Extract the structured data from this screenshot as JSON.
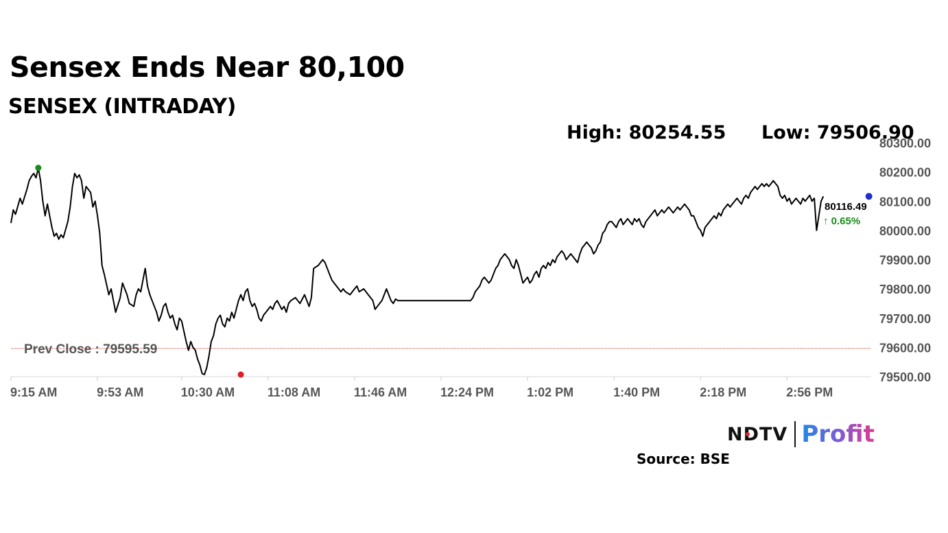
{
  "headline": "Sensex Ends Near 80,100",
  "subheadline": "SENSEX (INTRADAY)",
  "stats": {
    "high": "High: 80254.55",
    "low": "Low: 79506.90"
  },
  "source": "Source: BSE",
  "logo": {
    "brand": "NDTV",
    "product": "Profit"
  },
  "chart_data": {
    "type": "line",
    "title": "SENSEX (INTRADAY)",
    "xlabel": "",
    "ylabel": "",
    "x_tick_labels": [
      "9:15 AM",
      "9:53 AM",
      "10:30 AM",
      "11:08 AM",
      "11:46 AM",
      "12:24 PM",
      "1:02 PM",
      "1:40 PM",
      "2:18 PM",
      "2:56 PM"
    ],
    "x_tick_minutes": [
      555,
      593,
      630,
      668,
      706,
      744,
      782,
      820,
      858,
      896
    ],
    "x_range_minutes": [
      555,
      933
    ],
    "y_ticks": [
      79500,
      79600,
      79700,
      79800,
      79900,
      80000,
      80100,
      80200,
      80300
    ],
    "y_tick_labels": [
      "79500.00",
      "79600.00",
      "79700.00",
      "79800.00",
      "79900.00",
      "80000.00",
      "80100.00",
      "80200.00",
      "80300.00"
    ],
    "ylim": [
      79500,
      80300
    ],
    "grid": false,
    "reference_line": {
      "label": "Prev Close : 79595.59",
      "value": 79595.59,
      "color": "#c0392b"
    },
    "markers": {
      "high": {
        "minute": 567,
        "value": 80214,
        "color": "#1a8a1a"
      },
      "low": {
        "minute": 656,
        "value": 79507,
        "color": "#e31b23"
      },
      "last": {
        "minute": 932,
        "value": 80116.49,
        "color": "#1f2fcf"
      }
    },
    "last_value_label": "80116.49",
    "change_label": "↑ 0.65%",
    "change_color": "#1a8a1a",
    "line_color": "#000000",
    "series": [
      {
        "minutes": [
          555,
          556,
          557,
          559,
          560,
          562,
          563,
          564,
          565,
          566,
          567,
          568,
          569,
          570,
          571,
          573,
          574,
          575,
          576,
          577,
          578,
          580,
          581,
          582,
          583,
          584,
          585,
          586,
          587,
          588,
          590,
          591,
          592,
          593,
          594,
          595,
          596,
          598,
          599,
          600,
          601,
          603,
          604,
          605,
          606,
          607,
          609,
          610,
          611,
          612,
          613,
          614,
          615,
          616,
          617,
          618,
          619,
          620,
          621,
          622,
          623,
          624,
          625,
          626,
          627,
          628,
          629,
          630,
          632,
          633,
          634,
          635,
          636,
          637,
          638,
          639,
          640,
          641,
          642,
          643,
          644,
          645,
          646,
          647,
          648,
          649,
          650,
          651,
          652,
          653,
          654,
          655,
          656,
          657,
          658,
          659,
          660,
          661,
          662,
          663,
          664,
          665,
          666,
          667,
          669,
          670,
          671,
          672,
          674,
          675,
          676,
          677,
          678,
          680,
          681,
          682,
          684,
          685,
          686,
          687,
          688,
          690,
          692,
          693,
          694,
          695,
          696,
          697,
          698,
          699,
          700,
          701,
          702,
          704,
          705,
          706,
          707,
          708,
          710,
          711,
          712,
          713,
          714,
          715,
          716,
          717,
          718,
          719,
          720,
          721,
          722,
          723,
          724,
          725,
          727,
          728,
          729,
          730,
          731,
          732,
          733,
          734,
          735,
          736,
          737,
          738,
          739,
          740,
          741,
          742,
          743,
          744,
          745,
          746,
          747,
          748,
          749,
          750,
          751,
          752,
          753,
          754,
          755,
          756,
          757,
          758,
          759,
          760,
          761,
          762,
          763,
          764,
          765,
          766,
          767,
          768,
          769,
          770,
          771,
          772,
          773,
          774,
          775,
          776,
          777,
          778,
          779,
          780,
          781,
          782,
          783,
          784,
          785,
          786,
          787,
          788,
          789,
          790,
          791,
          792,
          793,
          794,
          795,
          796,
          797,
          798,
          799,
          800,
          801,
          802,
          803,
          804,
          805,
          806,
          807,
          808,
          809,
          810,
          811,
          812,
          813,
          814,
          815,
          816,
          817,
          818,
          819,
          820,
          821,
          822,
          823,
          824,
          825,
          826,
          827,
          828,
          829,
          830,
          831,
          832,
          833,
          834,
          835,
          836,
          837,
          838,
          839,
          840,
          841,
          842,
          843,
          844,
          845,
          846,
          847,
          848,
          849,
          850,
          851,
          852,
          853,
          854,
          855,
          856,
          857,
          858,
          859,
          860,
          861,
          862,
          863,
          864,
          865,
          866,
          867,
          868,
          869,
          870,
          871,
          872,
          873,
          874,
          875,
          876,
          877,
          878,
          879,
          880,
          881,
          882,
          883,
          884,
          885,
          886,
          887,
          888,
          889,
          890,
          891,
          892,
          893,
          894,
          895,
          896,
          897,
          898,
          899,
          900,
          901,
          902,
          903,
          904,
          905,
          906,
          907,
          908,
          909,
          910,
          911,
          912,
          913,
          914,
          915,
          916,
          917,
          918,
          919,
          920,
          921,
          922,
          923,
          924,
          925,
          926,
          927,
          928,
          929,
          930,
          931,
          932
        ],
        "values": [
          80025,
          80070,
          80055,
          80110,
          80090,
          80140,
          80170,
          80185,
          80195,
          80180,
          80214,
          80170,
          80100,
          80050,
          80090,
          80010,
          79980,
          79990,
          79970,
          79985,
          79975,
          80030,
          80080,
          80150,
          80195,
          80180,
          80190,
          80170,
          80110,
          80150,
          80130,
          80080,
          80100,
          80050,
          79990,
          79880,
          79850,
          79780,
          79800,
          79760,
          79720,
          79770,
          79820,
          79800,
          79780,
          79750,
          79740,
          79780,
          79800,
          79790,
          79830,
          79870,
          79810,
          79780,
          79760,
          79740,
          79720,
          79690,
          79710,
          79740,
          79750,
          79720,
          79700,
          79710,
          79680,
          79660,
          79700,
          79690,
          79620,
          79590,
          79620,
          79600,
          79590,
          79560,
          79540,
          79510,
          79507,
          79530,
          79570,
          79620,
          79640,
          79680,
          79700,
          79710,
          79680,
          79670,
          79700,
          79690,
          79720,
          79700,
          79730,
          79760,
          79780,
          79760,
          79790,
          79800,
          79760,
          79740,
          79750,
          79730,
          79700,
          79690,
          79710,
          79720,
          79740,
          79730,
          79750,
          79760,
          79730,
          79740,
          79720,
          79750,
          79760,
          79770,
          79760,
          79750,
          79780,
          79760,
          79740,
          79770,
          79870,
          79880,
          79900,
          79890,
          79870,
          79850,
          79830,
          79820,
          79810,
          79800,
          79790,
          79800,
          79790,
          79780,
          79790,
          79800,
          79810,
          79790,
          79800,
          79790,
          79780,
          79770,
          79760,
          79730,
          79740,
          79750,
          79760,
          79780,
          79800,
          79780,
          79760,
          79750,
          79765,
          79760,
          79760,
          79760,
          79760,
          79760,
          79760,
          79760,
          79760,
          79760,
          79760,
          79760,
          79760,
          79760,
          79760,
          79760,
          79760,
          79760,
          79760,
          79760,
          79760,
          79760,
          79760,
          79760,
          79760,
          79760,
          79760,
          79760,
          79760,
          79760,
          79760,
          79760,
          79760,
          79770,
          79790,
          79800,
          79810,
          79830,
          79840,
          79830,
          79820,
          79830,
          79850,
          79870,
          79880,
          79900,
          79910,
          79920,
          79910,
          79900,
          79880,
          79870,
          79900,
          79880,
          79850,
          79820,
          79830,
          79840,
          79820,
          79830,
          79850,
          79860,
          79840,
          79870,
          79880,
          79870,
          79890,
          79880,
          79900,
          79890,
          79910,
          79920,
          79930,
          79920,
          79900,
          79910,
          79920,
          79910,
          79900,
          79890,
          79920,
          79940,
          79950,
          79960,
          79950,
          79940,
          79920,
          79930,
          79950,
          79960,
          79990,
          80000,
          80020,
          80030,
          80030,
          80020,
          80010,
          80030,
          80040,
          80020,
          80030,
          80040,
          80030,
          80020,
          80040,
          80030,
          80040,
          80020,
          80010,
          80030,
          80040,
          80050,
          80060,
          80070,
          80050,
          80060,
          80070,
          80060,
          80070,
          80080,
          80070,
          80060,
          80070,
          80080,
          80070,
          80080,
          80090,
          80080,
          80070,
          80050,
          80050,
          80030,
          80010,
          80000,
          79980,
          80010,
          80020,
          80030,
          80040,
          80050,
          80040,
          80060,
          80050,
          80070,
          80080,
          80090,
          80080,
          80090,
          80100,
          80110,
          80100,
          80090,
          80110,
          80120,
          80110,
          80130,
          80140,
          80150,
          80140,
          80150,
          80160,
          80150,
          80160,
          80150,
          80160,
          80170,
          80160,
          80150,
          80120,
          80110,
          80120,
          80100,
          80110,
          80090,
          80100,
          80110,
          80100,
          80090,
          80110,
          80100,
          80110,
          80120,
          80100,
          80110,
          80000,
          80050,
          80100,
          80116.49
        ]
      }
    ]
  }
}
